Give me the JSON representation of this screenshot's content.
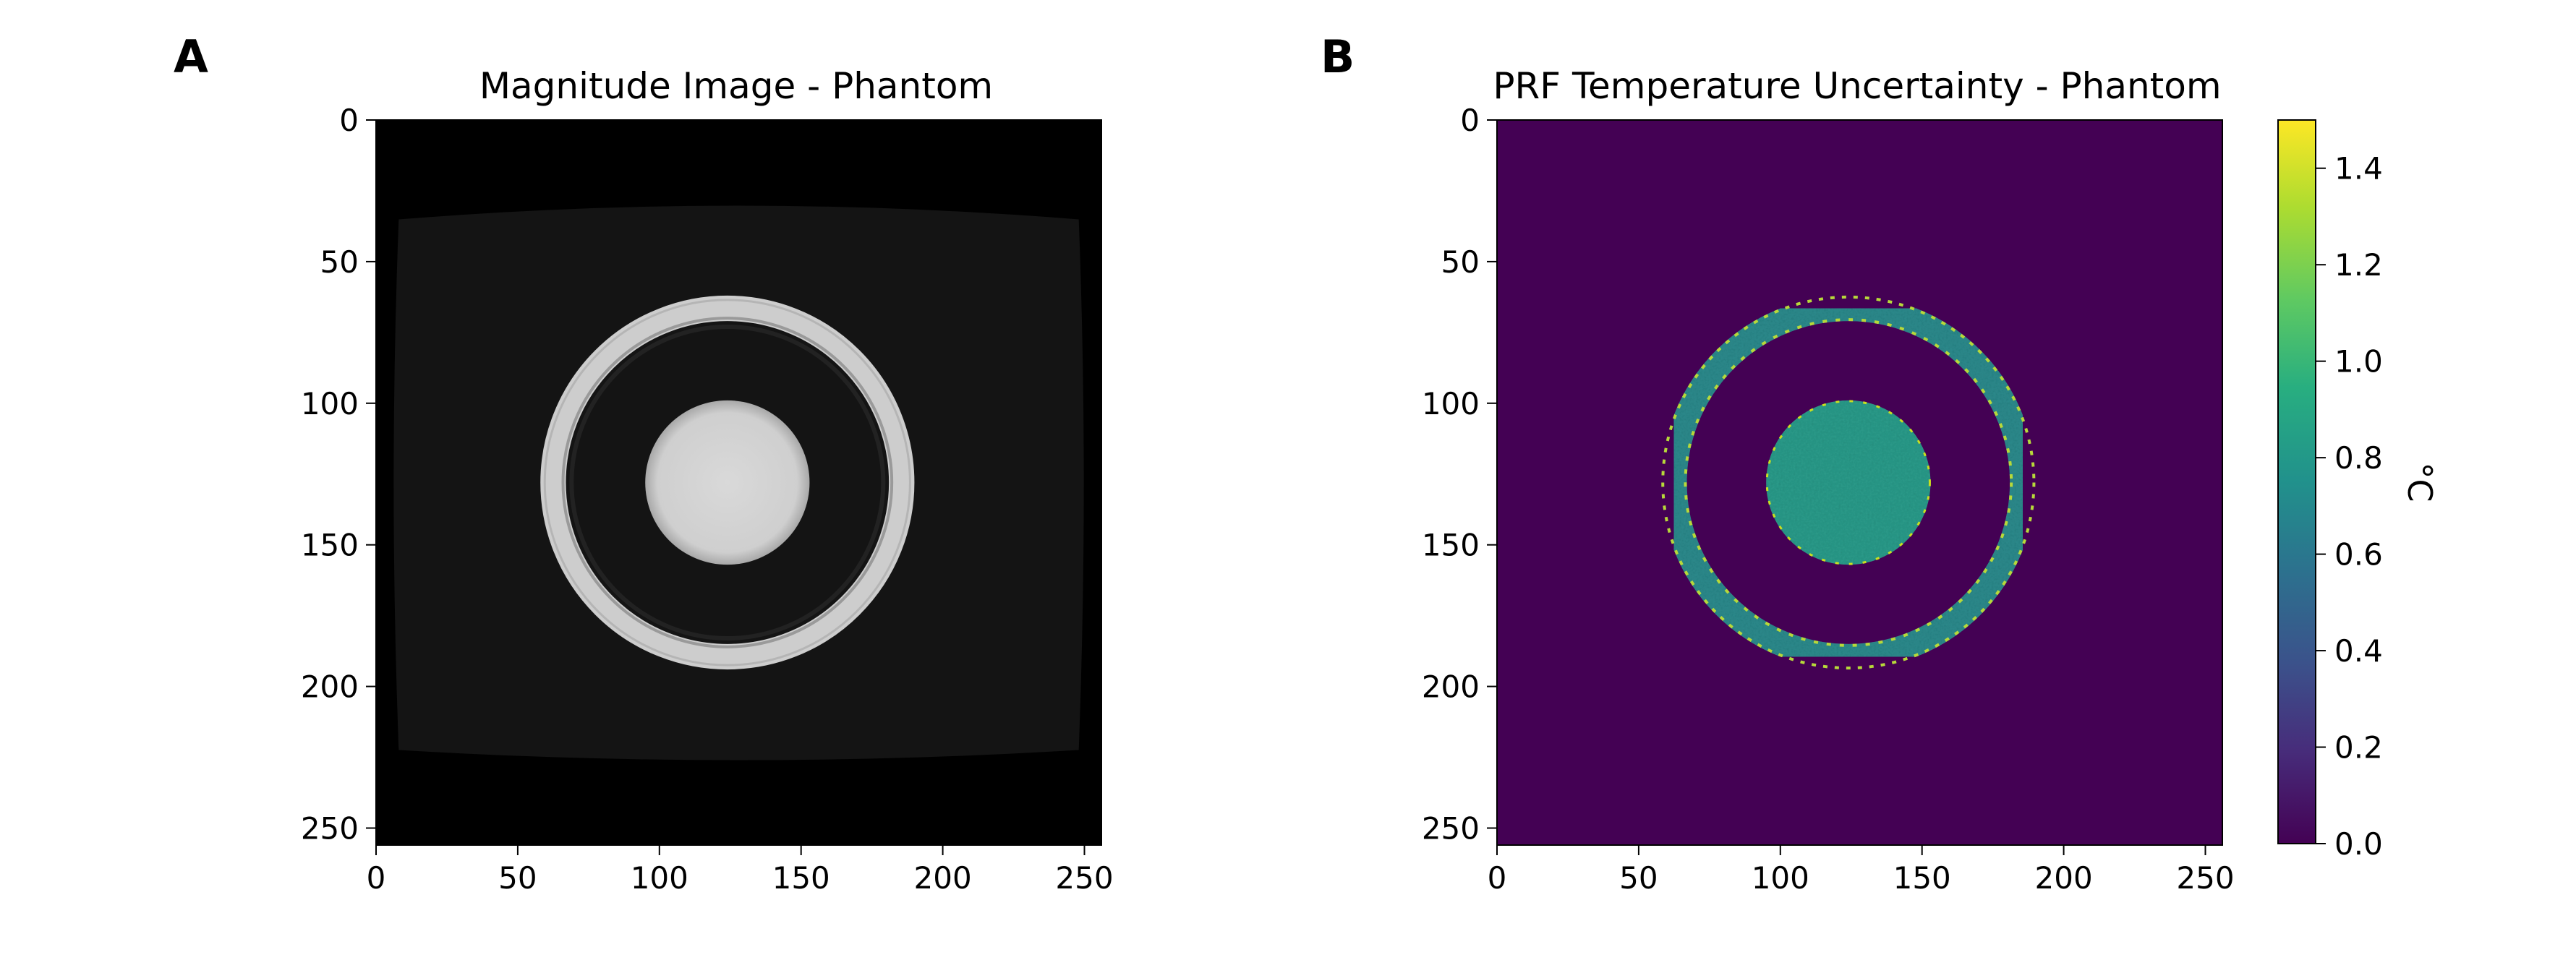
{
  "chart_data": [
    {
      "type": "heatmap",
      "panel_label": "A",
      "title": "Magnitude Image - Phantom",
      "xlabel": "",
      "ylabel": "",
      "xlim": [
        0,
        256
      ],
      "ylim": [
        256,
        0
      ],
      "xticks": [
        "0",
        "50",
        "100",
        "150",
        "200",
        "250"
      ],
      "yticks": [
        "0",
        "50",
        "100",
        "150",
        "200",
        "250"
      ],
      "colormap": "gray",
      "background": "#000000",
      "features": [
        {
          "name": "outer-ring",
          "center": [
            124,
            128
          ],
          "r_outer": 66,
          "r_inner": 57,
          "value": "bright"
        },
        {
          "name": "inner-disc",
          "center": [
            124,
            128
          ],
          "r": 29,
          "value": "bright"
        },
        {
          "name": "field-of-view",
          "x": [
            8,
            248
          ],
          "y": [
            30,
            225
          ],
          "value": "dark-gray"
        }
      ]
    },
    {
      "type": "heatmap",
      "panel_label": "B",
      "title": "PRF Temperature Uncertainty - Phantom",
      "xlabel": "",
      "ylabel": "",
      "xlim": [
        0,
        256
      ],
      "ylim": [
        256,
        0
      ],
      "xticks": [
        "0",
        "50",
        "100",
        "150",
        "200",
        "250"
      ],
      "yticks": [
        "0",
        "50",
        "100",
        "150",
        "200",
        "250"
      ],
      "colormap": "viridis",
      "colorbar": {
        "label": "°C",
        "range": [
          0.0,
          1.5
        ],
        "ticks": [
          "0.0",
          "0.2",
          "0.4",
          "0.6",
          "0.8",
          "1.0",
          "1.2",
          "1.4"
        ]
      },
      "features": [
        {
          "name": "outer-ring",
          "center": [
            124,
            128
          ],
          "r_outer": 66,
          "r_inner": 57,
          "value": 0.65
        },
        {
          "name": "inner-disc",
          "center": [
            124,
            128
          ],
          "r": 29,
          "value": 0.75
        },
        {
          "name": "background",
          "value": 0.0
        }
      ]
    }
  ]
}
